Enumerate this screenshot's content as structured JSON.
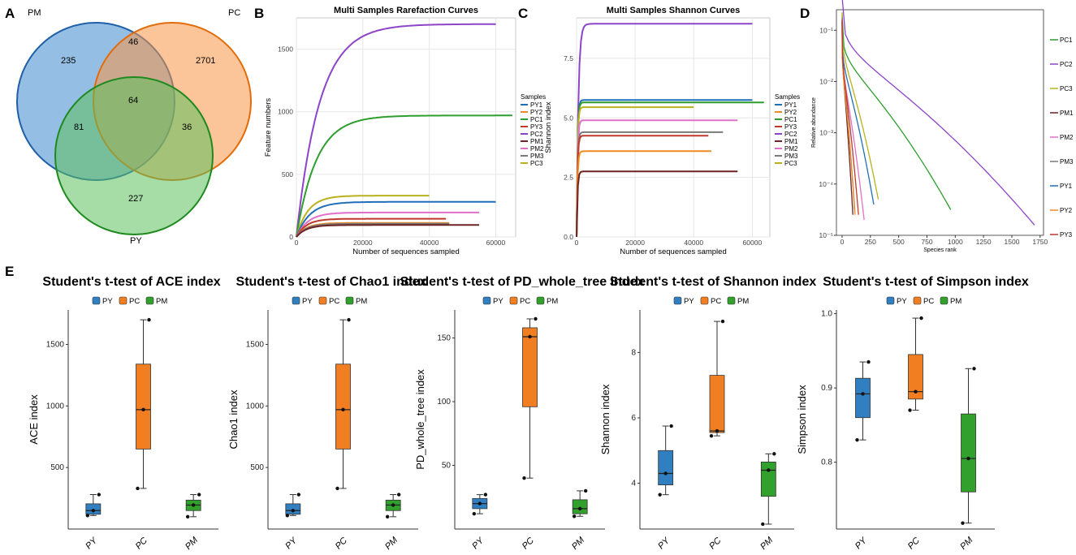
{
  "panel_labels": {
    "a": "A",
    "b": "B",
    "c": "C",
    "d": "D",
    "e": "E"
  },
  "colors": {
    "py": "#2f7fc1",
    "pc": "#f27e22",
    "pm": "#31a02c"
  },
  "chart_data": [
    {
      "type": "venn",
      "panel": "A",
      "sets": [
        "PM",
        "PC",
        "PY"
      ],
      "regions": {
        "PM_only": 235,
        "PC_only": 2701,
        "PY_only": 227,
        "PM_PC": 46,
        "PM_PY": 81,
        "PC_PY": 36,
        "PM_PC_PY": 64
      }
    },
    {
      "type": "line",
      "panel": "B",
      "title": "Multi Samples Rarefaction Curves",
      "xlabel": "Number of sequences sampled",
      "ylabel": "Feature numbers",
      "xlim": [
        0,
        66000
      ],
      "ylim": [
        0,
        1750
      ],
      "xticks": [
        0,
        20000,
        40000,
        60000
      ],
      "yticks": [
        0,
        500,
        1000,
        1500
      ],
      "legend_title": "Samples",
      "legend": [
        "PY1",
        "PY2",
        "PC1",
        "PY3",
        "PC2",
        "PM1",
        "PM2",
        "PM3",
        "PC3"
      ],
      "series": [
        {
          "name": "PC2",
          "color": "#8e44c8",
          "final": 1700,
          "max_x": 60000,
          "k": 7000
        },
        {
          "name": "PC1",
          "color": "#2e9e2e",
          "final": 970,
          "max_x": 65000,
          "k": 6000
        },
        {
          "name": "PC3",
          "color": "#b8b21c",
          "final": 330,
          "max_x": 40000,
          "k": 3500
        },
        {
          "name": "PY1",
          "color": "#1f6fb8",
          "final": 280,
          "max_x": 60000,
          "k": 4000
        },
        {
          "name": "PM2",
          "color": "#e070c8",
          "final": 195,
          "max_x": 55000,
          "k": 3500
        },
        {
          "name": "PY3",
          "color": "#c0392b",
          "final": 145,
          "max_x": 45000,
          "k": 3000
        },
        {
          "name": "PY2",
          "color": "#f08a24",
          "final": 112,
          "max_x": 46000,
          "k": 3000
        },
        {
          "name": "PM3",
          "color": "#7a7a7a",
          "final": 105,
          "max_x": 46000,
          "k": 3000
        },
        {
          "name": "PM1",
          "color": "#6b2323",
          "final": 95,
          "max_x": 55000,
          "k": 3000
        }
      ]
    },
    {
      "type": "line",
      "panel": "C",
      "title": "Multi Samples Shannon Curves",
      "xlabel": "Number of sequences sampled",
      "ylabel": "Shannon index",
      "xlim": [
        0,
        66000
      ],
      "ylim": [
        0,
        9.2
      ],
      "xticks": [
        0,
        20000,
        40000,
        60000
      ],
      "yticks": [
        0,
        2.5,
        5,
        7.5
      ],
      "ytick_labels": [
        "0.0",
        "2.5",
        "5.0",
        "7.5"
      ],
      "legend_title": "Samples",
      "legend": [
        "PY1",
        "PY2",
        "PC1",
        "PY3",
        "PC2",
        "PM1",
        "PM2",
        "PM3",
        "PC3"
      ],
      "series": [
        {
          "name": "PC2",
          "color": "#8e44c8",
          "final": 8.95,
          "max_x": 60000,
          "k": 600
        },
        {
          "name": "PY1",
          "color": "#1f6fb8",
          "final": 5.75,
          "max_x": 60000,
          "k": 300
        },
        {
          "name": "PC1",
          "color": "#2e9e2e",
          "final": 5.65,
          "max_x": 64000,
          "k": 300
        },
        {
          "name": "PC3",
          "color": "#b8b21c",
          "final": 5.45,
          "max_x": 40000,
          "k": 300
        },
        {
          "name": "PM2",
          "color": "#e070c8",
          "final": 4.9,
          "max_x": 55000,
          "k": 300
        },
        {
          "name": "PM3",
          "color": "#7a7a7a",
          "final": 4.4,
          "max_x": 50000,
          "k": 300
        },
        {
          "name": "PY3",
          "color": "#c0392b",
          "final": 4.25,
          "max_x": 45000,
          "k": 300
        },
        {
          "name": "PY2",
          "color": "#f08a24",
          "final": 3.6,
          "max_x": 46000,
          "k": 300
        },
        {
          "name": "PM1",
          "color": "#6b2323",
          "final": 2.75,
          "max_x": 55000,
          "k": 300
        }
      ]
    },
    {
      "type": "line",
      "panel": "D",
      "subtype": "rank-abundance",
      "xlabel": "Species rank",
      "ylabel": "Relative abundance",
      "yscale": "log",
      "xlim": [
        -50,
        1780
      ],
      "ylim_log10": [
        -5,
        -0.6
      ],
      "xticks": [
        0,
        250,
        500,
        750,
        1000,
        1250,
        1500,
        1750
      ],
      "yticks_log10": [
        -5,
        -4,
        -3,
        -2,
        -1
      ],
      "ytick_labels": [
        "10⁻⁵",
        "10⁻⁴",
        "10⁻³",
        "10⁻²",
        "10⁻¹"
      ],
      "legend": [
        "PC1",
        "PC2",
        "PC3",
        "PM1",
        "PM2",
        "PM3",
        "PY1",
        "PY2",
        "PY3"
      ],
      "series": [
        {
          "name": "PC1",
          "color": "#2e9e2e",
          "max_rank": 960,
          "start": -0.7,
          "end": -4.5
        },
        {
          "name": "PC2",
          "color": "#8e44c8",
          "max_rank": 1700,
          "start": -0.35,
          "end": -4.8
        },
        {
          "name": "PC3",
          "color": "#b8b21c",
          "max_rank": 320,
          "start": -0.65,
          "end": -4.3
        },
        {
          "name": "PM1",
          "color": "#6b2323",
          "max_rank": 95,
          "start": -0.8,
          "end": -4.6
        },
        {
          "name": "PM2",
          "color": "#e070c8",
          "max_rank": 195,
          "start": -0.9,
          "end": -4.7
        },
        {
          "name": "PM3",
          "color": "#7a7a7a",
          "max_rank": 110,
          "start": -0.75,
          "end": -4.5
        },
        {
          "name": "PY1",
          "color": "#1f6fb8",
          "max_rank": 280,
          "start": -0.85,
          "end": -4.4
        },
        {
          "name": "PY2",
          "color": "#f08a24",
          "max_rank": 115,
          "start": -0.9,
          "end": -4.6
        },
        {
          "name": "PY3",
          "color": "#c0392b",
          "max_rank": 145,
          "start": -0.8,
          "end": -4.6
        }
      ]
    },
    {
      "type": "box",
      "panel": "E",
      "title": "Student's t-test of ACE index",
      "ylabel": "ACE index",
      "legend": [
        "PY",
        "PC",
        "PM"
      ],
      "categories": [
        "PY",
        "PC",
        "PM"
      ],
      "ylim": [
        0,
        1780
      ],
      "yticks": [
        500,
        1000,
        1500
      ],
      "boxes": [
        {
          "group": "PY",
          "min": 110,
          "q1": 120,
          "median": 150,
          "q3": 205,
          "max": 280,
          "points": [
            110,
            150,
            280
          ]
        },
        {
          "group": "PC",
          "min": 330,
          "q1": 650,
          "median": 970,
          "q3": 1340,
          "max": 1700,
          "points": [
            330,
            970,
            1700
          ]
        },
        {
          "group": "PM",
          "min": 100,
          "q1": 150,
          "median": 195,
          "q3": 235,
          "max": 280,
          "points": [
            100,
            195,
            280
          ]
        }
      ]
    },
    {
      "type": "box",
      "panel": "E",
      "title": "Student's t-test of Chao1 index",
      "ylabel": "Chao1 index",
      "legend": [
        "PY",
        "PC",
        "PM"
      ],
      "categories": [
        "PY",
        "PC",
        "PM"
      ],
      "ylim": [
        0,
        1780
      ],
      "yticks": [
        500,
        1000,
        1500
      ],
      "boxes": [
        {
          "group": "PY",
          "min": 110,
          "q1": 120,
          "median": 150,
          "q3": 205,
          "max": 280,
          "points": [
            110,
            150,
            280
          ]
        },
        {
          "group": "PC",
          "min": 330,
          "q1": 650,
          "median": 970,
          "q3": 1340,
          "max": 1700,
          "points": [
            330,
            970,
            1700
          ]
        },
        {
          "group": "PM",
          "min": 100,
          "q1": 150,
          "median": 195,
          "q3": 235,
          "max": 280,
          "points": [
            100,
            195,
            280
          ]
        }
      ]
    },
    {
      "type": "box",
      "panel": "E",
      "title": "Student's t-test of PD_whole_tree index",
      "ylabel": "PD_whole_tree index",
      "legend": [
        "PY",
        "PC",
        "PM"
      ],
      "categories": [
        "PY",
        "PC",
        "PM"
      ],
      "ylim": [
        0,
        172
      ],
      "yticks": [
        50,
        100,
        150
      ],
      "boxes": [
        {
          "group": "PY",
          "min": 12,
          "q1": 16,
          "median": 20,
          "q3": 24,
          "max": 27,
          "points": [
            12,
            20,
            27
          ]
        },
        {
          "group": "PC",
          "min": 40,
          "q1": 96,
          "median": 151,
          "q3": 158,
          "max": 165,
          "points": [
            40,
            151,
            165
          ]
        },
        {
          "group": "PM",
          "min": 10,
          "q1": 12,
          "median": 16,
          "q3": 23,
          "max": 30,
          "points": [
            10,
            16,
            30
          ]
        }
      ]
    },
    {
      "type": "box",
      "panel": "E",
      "title": "Student's t-test of Shannon index",
      "ylabel": "Shannon index",
      "legend": [
        "PY",
        "PC",
        "PM"
      ],
      "categories": [
        "PY",
        "PC",
        "PM"
      ],
      "ylim": [
        2.6,
        9.3
      ],
      "yticks": [
        4,
        6,
        8
      ],
      "boxes": [
        {
          "group": "PY",
          "min": 3.65,
          "q1": 3.95,
          "median": 4.3,
          "q3": 5.0,
          "max": 5.75,
          "points": [
            3.65,
            4.3,
            5.75
          ]
        },
        {
          "group": "PC",
          "min": 5.45,
          "q1": 5.55,
          "median": 5.6,
          "q3": 7.3,
          "max": 8.95,
          "points": [
            5.45,
            5.6,
            8.95
          ]
        },
        {
          "group": "PM",
          "min": 2.75,
          "q1": 3.6,
          "median": 4.4,
          "q3": 4.65,
          "max": 4.9,
          "points": [
            2.75,
            4.4,
            4.9
          ]
        }
      ]
    },
    {
      "type": "box",
      "panel": "E",
      "title": "Student's t-test of Simpson index",
      "ylabel": "Simpson index",
      "legend": [
        "PY",
        "PC",
        "PM"
      ],
      "categories": [
        "PY",
        "PC",
        "PM"
      ],
      "ylim": [
        0.71,
        1.005
      ],
      "yticks": [
        0.8,
        0.9,
        1.0
      ],
      "ytick_labels": [
        "0.8",
        "0.9",
        "1.0"
      ],
      "boxes": [
        {
          "group": "PY",
          "min": 0.83,
          "q1": 0.86,
          "median": 0.892,
          "q3": 0.913,
          "max": 0.935,
          "points": [
            0.83,
            0.892,
            0.935
          ]
        },
        {
          "group": "PC",
          "min": 0.87,
          "q1": 0.885,
          "median": 0.895,
          "q3": 0.945,
          "max": 0.994,
          "points": [
            0.87,
            0.895,
            0.994
          ]
        },
        {
          "group": "PM",
          "min": 0.718,
          "q1": 0.76,
          "median": 0.805,
          "q3": 0.865,
          "max": 0.926,
          "points": [
            0.718,
            0.805,
            0.926
          ]
        }
      ]
    }
  ]
}
